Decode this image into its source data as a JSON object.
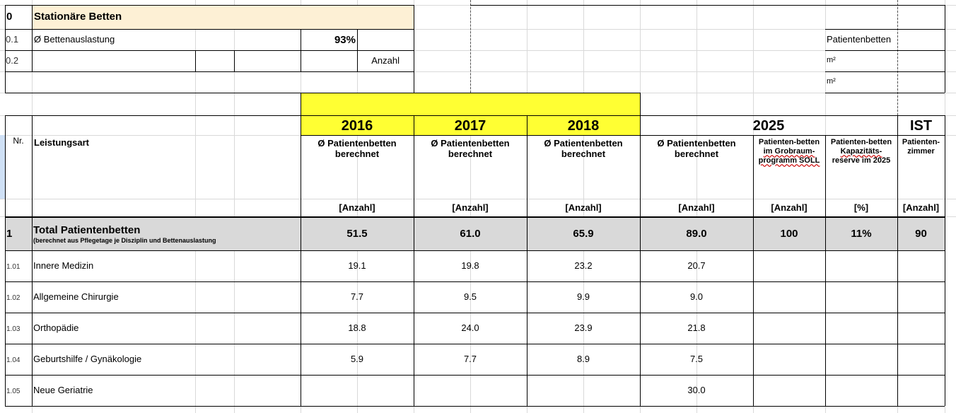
{
  "section": {
    "number": "0",
    "title": "Stationäre Betten",
    "r1_number": "0.1",
    "r1_label": "Ø Bettenauslastung",
    "r1_value": "93%",
    "r2_number": "0.2",
    "r2_unit": "Anzahl",
    "side_label_patientenbetten": "Patientenbetten",
    "side_m2_a": "m²",
    "side_m2_b": "m²"
  },
  "years": {
    "y2016": "2016",
    "y2017": "2017",
    "y2018": "2018",
    "y2025": "2025",
    "ist": "IST"
  },
  "headers": {
    "nr": "Nr.",
    "leistungsart": "Leistungsart",
    "ber_line1": "Ø Patientenbetten",
    "ber_line2": "berechnet",
    "grob_l1": "Patienten-betten",
    "grob_l2": "im Grobraum-",
    "grob_l3": "programm SOLL",
    "kap_l1": "Patienten-betten",
    "kap_l2": "Kapazitäts-",
    "kap_l3": "reserve im 2025",
    "zim_l1": "Patienten-",
    "zim_l2": "zimmer",
    "unit_anzahl": "[Anzahl]",
    "unit_pct": "[%]"
  },
  "total": {
    "nr": "1",
    "label": "Total Patientenbetten",
    "sublabel": "(berechnet aus Pflegetage je Disziplin und Bettenauslastung",
    "v2016": "51.5",
    "v2017": "61.0",
    "v2018": "65.9",
    "v2025": "89.0",
    "soll": "100",
    "reserve": "11%",
    "zimmer": "90"
  },
  "rows": [
    {
      "nr": "1.01",
      "label": "Innere Medizin",
      "v2016": "19.1",
      "v2017": "19.8",
      "v2018": "23.2",
      "v2025": "20.7"
    },
    {
      "nr": "1.02",
      "label": "Allgemeine Chirurgie",
      "v2016": "7.7",
      "v2017": "9.5",
      "v2018": "9.9",
      "v2025": "9.0"
    },
    {
      "nr": "1.03",
      "label": "Orthopädie",
      "v2016": "18.8",
      "v2017": "24.0",
      "v2018": "23.9",
      "v2025": "21.8"
    },
    {
      "nr": "1.04",
      "label": "Geburtshilfe / Gynäkologie",
      "v2016": "5.9",
      "v2017": "7.7",
      "v2018": "8.9",
      "v2025": "7.5"
    },
    {
      "nr": "1.05",
      "label": "Neue Geriatrie",
      "v2016": "",
      "v2017": "",
      "v2018": "",
      "v2025": "30.0"
    }
  ],
  "colors": {
    "section_header_bg": "#fdf0d5",
    "year_highlight": "#ffff33",
    "total_row_bg": "#d9d9d9"
  }
}
